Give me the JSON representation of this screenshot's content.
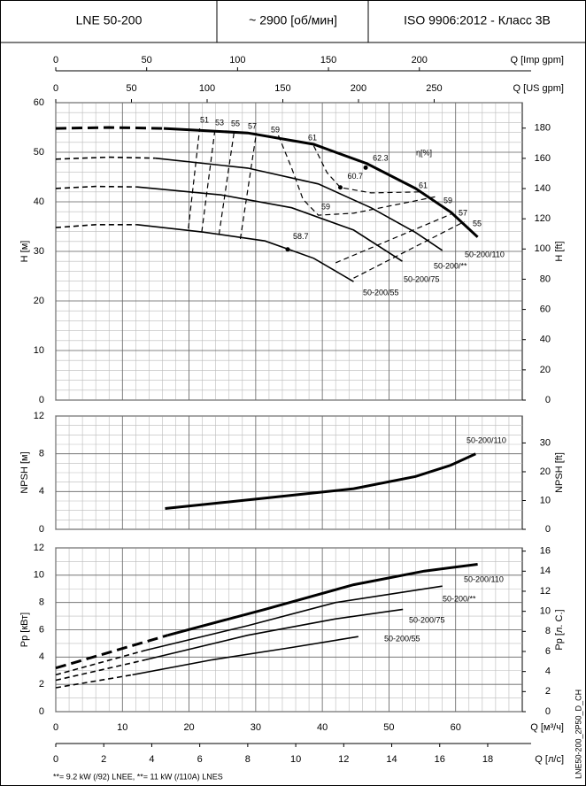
{
  "header": {
    "model": "LNE 50-200",
    "speed": "~ 2900 [об/мин]",
    "standard": "ISO 9906:2012 - Класс 3B"
  },
  "top_axes": [
    {
      "label": "Q [Imp gpm]",
      "xlim": [
        0,
        256.6
      ],
      "xticks": [
        0,
        50,
        100,
        150,
        200
      ]
    },
    {
      "label": "Q [US gpm]",
      "xlim": [
        0,
        308.2
      ],
      "xticks": [
        0,
        50,
        100,
        150,
        200,
        250
      ]
    }
  ],
  "footnote": "**= 9.2 kW (/92) LNEE, **= 11 kW (/110A) LNES",
  "code": "LNE50-200_2P50_D_CH",
  "chart_data": [
    {
      "type": "line",
      "ylabel": "H [м]",
      "y2label": "H [ft]",
      "annotation": "η[%]",
      "xlim": [
        0,
        70
      ],
      "xticks": [
        0,
        10,
        20,
        30,
        40,
        50,
        60
      ],
      "xtick_labels": false,
      "xminor_step": 2,
      "ylim": [
        0,
        60
      ],
      "yticks": [
        0,
        10,
        20,
        30,
        40,
        50,
        60
      ],
      "yminor_step": 2,
      "y2lim": [
        0,
        196.85
      ],
      "y2ticks": [
        0,
        20,
        40,
        60,
        80,
        100,
        120,
        140,
        160,
        180
      ],
      "grid": true,
      "color": "#000000",
      "series": [
        {
          "line": "dashed",
          "width": 3,
          "x": [
            0,
            8,
            16.2
          ],
          "values": [
            54.8,
            55,
            54.8
          ]
        },
        {
          "name": "50-200/110",
          "line": "solid",
          "width": 3,
          "x": [
            16.2,
            28.8,
            38.7,
            46.7,
            54,
            59.3,
            63.3
          ],
          "values": [
            54.8,
            53.9,
            51.6,
            47.7,
            42.7,
            37.9,
            32.9
          ]
        },
        {
          "line": "dashed",
          "width": 1.6,
          "x": [
            0,
            8,
            14.9
          ],
          "values": [
            48.6,
            49,
            48.8
          ]
        },
        {
          "name": "50-200/**",
          "line": "solid",
          "width": 1.6,
          "x": [
            14.9,
            28.8,
            39.4,
            47.3,
            54,
            58
          ],
          "values": [
            48.8,
            46.8,
            43.6,
            38.8,
            33.8,
            30.2
          ]
        },
        {
          "line": "dashed",
          "width": 1.6,
          "x": [
            0,
            6,
            12.2
          ],
          "values": [
            42.7,
            43.1,
            43
          ]
        },
        {
          "name": "50-200/75",
          "line": "solid",
          "width": 1.6,
          "x": [
            12.2,
            24.8,
            35.4,
            44.7,
            52
          ],
          "values": [
            43,
            41.4,
            38.8,
            34.3,
            28
          ]
        },
        {
          "line": "dashed",
          "width": 1.6,
          "x": [
            0,
            6,
            12.2
          ],
          "values": [
            34.8,
            35.4,
            35.4
          ]
        },
        {
          "name": "50-200/55",
          "line": "solid",
          "width": 1.6,
          "x": [
            12.2,
            22.1,
            31.4,
            38.7,
            44.7
          ],
          "values": [
            35.4,
            33.9,
            32.1,
            28.6,
            23.9
          ]
        },
        {
          "name": "51",
          "line": "dashed",
          "width": 1.2,
          "x": [
            19.9,
            21.6
          ],
          "values": [
            34.6,
            54.8
          ]
        },
        {
          "name": "53",
          "line": "dashed",
          "width": 1.2,
          "x": [
            21.9,
            23.9
          ],
          "values": [
            33.9,
            54.6
          ]
        },
        {
          "name": "55",
          "line": "dashed",
          "width": 1.2,
          "x": [
            24.5,
            26.8
          ],
          "values": [
            33.4,
            54.5
          ]
        },
        {
          "name": "57",
          "line": "dashed",
          "width": 1.2,
          "x": [
            27.7,
            30.1
          ],
          "values": [
            32.5,
            53.9
          ]
        },
        {
          "name": "59",
          "line": "dashed",
          "width": 1.2,
          "x": [
            33.4,
            35.4,
            37.1,
            39.4,
            44.7,
            57.3
          ],
          "values": [
            53.4,
            46.8,
            40.5,
            37.3,
            37.7,
            41.1
          ]
        },
        {
          "name": "61",
          "line": "dashed",
          "width": 1.2,
          "x": [
            38.7,
            40.7,
            42.7,
            47.3,
            54.6
          ],
          "values": [
            51.3,
            45.9,
            42.9,
            41.8,
            42
          ]
        },
        {
          "name": "57",
          "line": "dashed",
          "width": 1.2,
          "x": [
            42,
            59.3
          ],
          "values": [
            27.7,
            37.5
          ]
        },
        {
          "name": "55",
          "line": "dashed",
          "width": 1.2,
          "x": [
            44.7,
            61.3
          ],
          "values": [
            24.6,
            36
          ]
        }
      ],
      "points": [
        {
          "text": "62.3",
          "x": 46.5,
          "y": 46.9
        },
        {
          "text": "60.7",
          "x": 42.7,
          "y": 42.9
        },
        {
          "text": "58.7",
          "x": 34.8,
          "y": 30.4
        }
      ]
    },
    {
      "type": "line",
      "ylabel": "NPSH [м]",
      "y2label": "NPSH [ft]",
      "xlim": [
        0,
        70
      ],
      "xticks": [
        0,
        10,
        20,
        30,
        40,
        50,
        60
      ],
      "xtick_labels": false,
      "xminor_step": 2,
      "ylim": [
        0,
        12
      ],
      "yticks": [
        0,
        4,
        8,
        12
      ],
      "yminor_step": 1,
      "y2lim": [
        0,
        39.37
      ],
      "y2ticks": [
        0,
        10,
        20,
        30
      ],
      "grid": true,
      "color": "#000000",
      "series": [
        {
          "name": "50-200/110",
          "line": "solid",
          "width": 3,
          "x": [
            16.4,
            31.4,
            44.7,
            54,
            59.3,
            63
          ],
          "values": [
            2.2,
            3.3,
            4.3,
            5.6,
            6.8,
            8
          ]
        }
      ]
    },
    {
      "type": "line",
      "ylabel": "Pp [кВт]",
      "y2label": "Pp [л. С.]",
      "xlim": [
        0,
        70
      ],
      "xticks": [
        0,
        10,
        20,
        30,
        40,
        50,
        60
      ],
      "xtick_labels": true,
      "xlabel": "Q [м³/ч]",
      "xminor_step": 2,
      "x2label": "Q [л/с]",
      "x2lim": [
        0,
        19.44
      ],
      "x2ticks": [
        0,
        2,
        4,
        6,
        8,
        10,
        12,
        14,
        16,
        18
      ],
      "ylim": [
        0,
        12
      ],
      "yticks": [
        0,
        2,
        4,
        6,
        8,
        10,
        12
      ],
      "yminor_step": 1,
      "y2lim": [
        0,
        16.32
      ],
      "y2ticks": [
        0,
        2,
        4,
        6,
        8,
        10,
        12,
        14,
        16
      ],
      "grid": true,
      "color": "#000000",
      "series": [
        {
          "line": "dashed",
          "width": 3,
          "x": [
            0,
            16.8
          ],
          "values": [
            3.2,
            5.6
          ]
        },
        {
          "name": "50-200/110",
          "line": "solid",
          "width": 3,
          "x": [
            16.8,
            31.4,
            44.7,
            55.3,
            63.3
          ],
          "values": [
            5.6,
            7.5,
            9.3,
            10.3,
            10.8
          ]
        },
        {
          "line": "dashed",
          "width": 1.6,
          "x": [
            0,
            13.5
          ],
          "values": [
            2.7,
            4.5
          ]
        },
        {
          "name": "50-200/**",
          "line": "solid",
          "width": 1.6,
          "x": [
            13.5,
            28.8,
            42,
            58
          ],
          "values": [
            4.5,
            6.3,
            8,
            9.2
          ]
        },
        {
          "line": "dashed",
          "width": 1.6,
          "x": [
            0,
            13.5
          ],
          "values": [
            2.3,
            3.8
          ]
        },
        {
          "name": "50-200/75",
          "line": "solid",
          "width": 1.6,
          "x": [
            13.5,
            28.8,
            42,
            52.1
          ],
          "values": [
            3.8,
            5.6,
            6.8,
            7.5
          ]
        },
        {
          "line": "dashed",
          "width": 1.6,
          "x": [
            0,
            11.5
          ],
          "values": [
            1.75,
            2.7
          ]
        },
        {
          "name": "50-200/55",
          "line": "solid",
          "width": 1.6,
          "x": [
            11.5,
            23.5,
            35.4,
            45.4
          ],
          "values": [
            2.7,
            3.8,
            4.7,
            5.5
          ]
        }
      ]
    }
  ]
}
